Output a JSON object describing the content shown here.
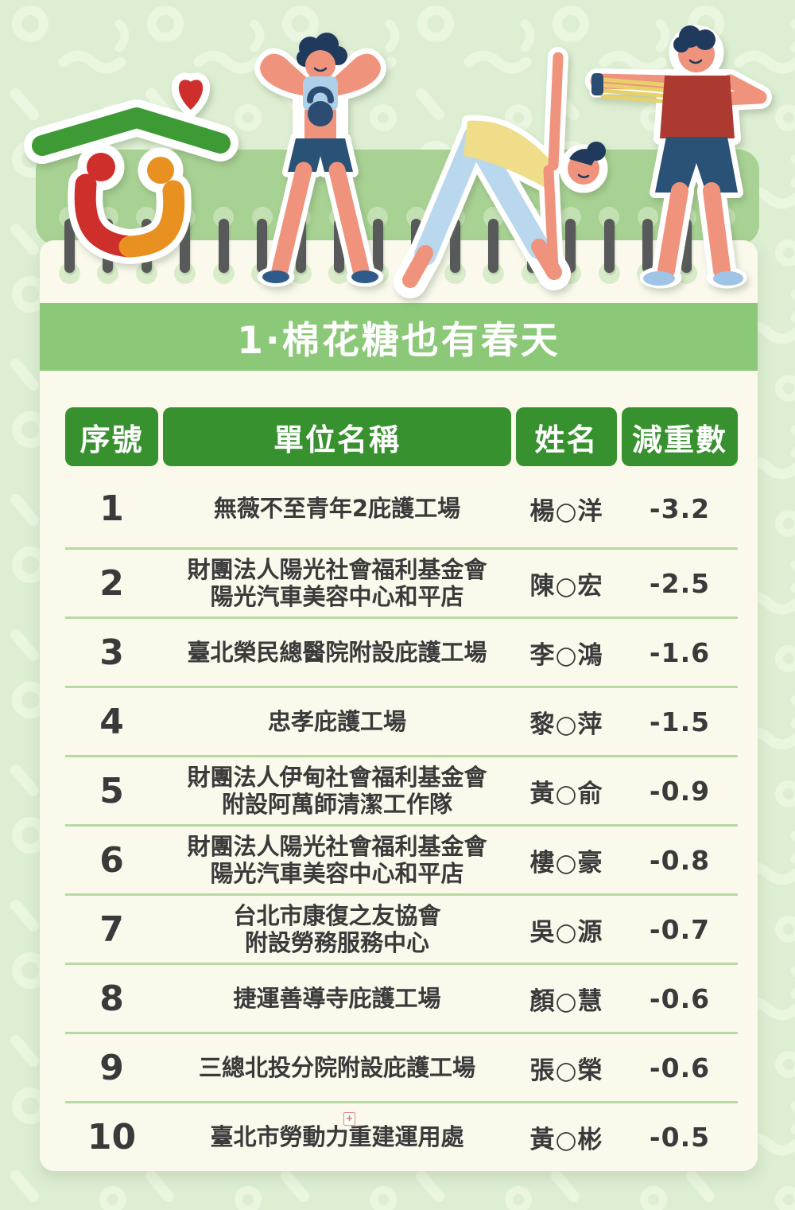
{
  "title": "1·棉花糖也有春天",
  "table": {
    "headers": [
      "序號",
      "單位名稱",
      "姓名",
      "減重數"
    ],
    "rows": [
      {
        "no": "1",
        "unit": [
          "無薇不至青年2庇護工場"
        ],
        "name": "楊○洋",
        "value": "-3.2"
      },
      {
        "no": "2",
        "unit": [
          "財團法人陽光社會福利基金會",
          "陽光汽車美容中心和平店"
        ],
        "name": "陳○宏",
        "value": "-2.5"
      },
      {
        "no": "3",
        "unit": [
          "臺北榮民總醫院附設庇護工場"
        ],
        "name": "李○鴻",
        "value": "-1.6"
      },
      {
        "no": "4",
        "unit": [
          "忠孝庇護工場"
        ],
        "name": "黎○萍",
        "value": "-1.5"
      },
      {
        "no": "5",
        "unit": [
          "財團法人伊甸社會福利基金會",
          "附設阿萬師清潔工作隊"
        ],
        "name": "黃○俞",
        "value": "-0.9"
      },
      {
        "no": "6",
        "unit": [
          "財團法人陽光社會福利基金會",
          "陽光汽車美容中心和平店"
        ],
        "name": "樓○豪",
        "value": "-0.8"
      },
      {
        "no": "7",
        "unit": [
          "台北市康復之友協會",
          "附設勞務服務中心"
        ],
        "name": "吳○源",
        "value": "-0.7"
      },
      {
        "no": "8",
        "unit": [
          "捷運善導寺庇護工場"
        ],
        "name": "顏○慧",
        "value": "-0.6"
      },
      {
        "no": "9",
        "unit": [
          "三總北投分院附設庇護工場"
        ],
        "name": "張○榮",
        "value": "-0.6"
      },
      {
        "no": "10",
        "unit": [
          "臺北市勞動力重建運用處"
        ],
        "name": "黃○彬",
        "value": "-0.5",
        "annotation": "+"
      }
    ]
  },
  "illustrations": {
    "logo": "home-heart-family-logo",
    "figure1": "woman-kettlebell-illustration",
    "figure2": "triangle-pose-illustration",
    "figure3": "man-resistance-band-illustration",
    "binding": "notebook-spiral-binding"
  },
  "colors": {
    "background": "#ddeed3",
    "pattern": "#eaf6e0",
    "band": "#a8d293",
    "title_band": "#8bc877",
    "header_green": "#38912f",
    "paper": "#faf9ec",
    "divider": "#b5dba2",
    "text": "#3a3a3a",
    "pin_gray": "#58595b",
    "logo_red": "#cf2f2a",
    "logo_orange": "#e89120",
    "logo_green": "#3e9a35",
    "skin": "#f0937d",
    "navy": "#2a5277",
    "light_blue": "#aed0e8",
    "yellow": "#f0dd8a",
    "dark_red": "#ad3a31"
  }
}
